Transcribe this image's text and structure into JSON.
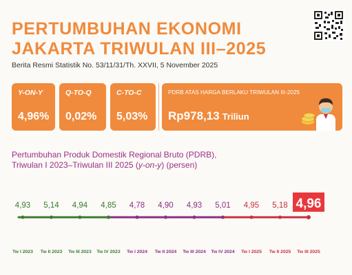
{
  "header": {
    "title_line1": "PERTUMBUHAN EKONOMI",
    "title_line2": "JAKARTA TRIWULAN III–2025",
    "subtitle": "Berita Resmi Statistik No. 53/11/31/Th. XXVII, 5 November 2025"
  },
  "stats": [
    {
      "label": "Y-ON-Y",
      "value": "4,96%"
    },
    {
      "label": "Q-TO-Q",
      "value": "0,02%"
    },
    {
      "label": "C-TO-C",
      "value": "5,03%"
    }
  ],
  "pdrb": {
    "label": "PDRB ATAS HARGA BERLAKU TRIWULAN III-2025",
    "value": "Rp978,13",
    "unit": "Triliun"
  },
  "chart_title": {
    "line1": "Pertumbuhan Produk Domestik Regional Bruto (PDRB),",
    "line2_prefix": "Triwulan I 2023–Triwulan III 2025 (",
    "line2_italic": "y-on-y",
    "line2_suffix": ") (persen)"
  },
  "colors": {
    "accent": "#f08a3c",
    "highlight": "#e8383b",
    "year_2023": "#3c7a32",
    "year_2024": "#8a2f86",
    "year_2025": "#c8303e"
  },
  "chart_data": {
    "type": "line",
    "title": "Pertumbuhan Produk Domestik Regional Bruto (PDRB), Triwulan I 2023–Triwulan III 2025 (y-on-y) (persen)",
    "categories": [
      "Tw I 2023",
      "Tw II 2023",
      "Tw III 2023",
      "Tw IV 2023",
      "Tw I 2024",
      "Tw II 2024",
      "Tw III 2024",
      "Tw IV 2024",
      "Tw I 2025",
      "Tw II 2025",
      "Tw III 2025"
    ],
    "value_labels": [
      "4,93",
      "5,14",
      "4,94",
      "4,85",
      "4,78",
      "4,90",
      "4,93",
      "5,01",
      "4,95",
      "5,18",
      "4,96"
    ],
    "values": [
      4.93,
      5.14,
      4.94,
      4.85,
      4.78,
      4.9,
      4.93,
      5.01,
      4.95,
      5.18,
      4.96
    ],
    "series_year": [
      "2023",
      "2023",
      "2023",
      "2023",
      "2024",
      "2024",
      "2024",
      "2024",
      "2025",
      "2025",
      "2025"
    ]
  }
}
